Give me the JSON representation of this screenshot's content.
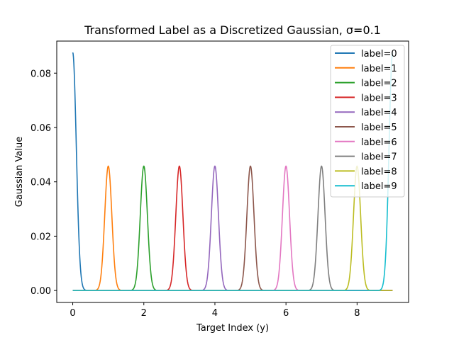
{
  "chart_data": {
    "type": "line",
    "title": "Transformed Label as a Discretized Gaussian, σ=0.1",
    "xlabel": "Target Index (y)",
    "ylabel": "Gaussian Value",
    "xlim": [
      -0.45,
      9.45
    ],
    "ylim": [
      -0.0044,
      0.0918
    ],
    "x_ticks": [
      0,
      2,
      4,
      6,
      8
    ],
    "y_ticks": [
      0.0,
      0.02,
      0.04,
      0.06,
      0.08
    ],
    "x_tick_labels": [
      "0",
      "2",
      "4",
      "6",
      "8"
    ],
    "y_tick_labels": [
      "0.00",
      "0.02",
      "0.04",
      "0.06",
      "0.08"
    ],
    "x_range": [
      0,
      9
    ],
    "sigma": 0.1,
    "legend_position": "upper-right",
    "grid": false,
    "series": [
      {
        "name": "label=0",
        "center": 0,
        "peak": 0.0876,
        "color": "#1f77b4"
      },
      {
        "name": "label=1",
        "center": 1,
        "peak": 0.0458,
        "color": "#ff7f0e"
      },
      {
        "name": "label=2",
        "center": 2,
        "peak": 0.0458,
        "color": "#2ca02c"
      },
      {
        "name": "label=3",
        "center": 3,
        "peak": 0.0458,
        "color": "#d62728"
      },
      {
        "name": "label=4",
        "center": 4,
        "peak": 0.0458,
        "color": "#9467bd"
      },
      {
        "name": "label=5",
        "center": 5,
        "peak": 0.0458,
        "color": "#8c564b"
      },
      {
        "name": "label=6",
        "center": 6,
        "peak": 0.0458,
        "color": "#e377c2"
      },
      {
        "name": "label=7",
        "center": 7,
        "peak": 0.0458,
        "color": "#7f7f7f"
      },
      {
        "name": "label=8",
        "center": 8,
        "peak": 0.0458,
        "color": "#bcbd22"
      },
      {
        "name": "label=9",
        "center": 9,
        "peak": 0.0876,
        "color": "#17becf"
      }
    ]
  }
}
